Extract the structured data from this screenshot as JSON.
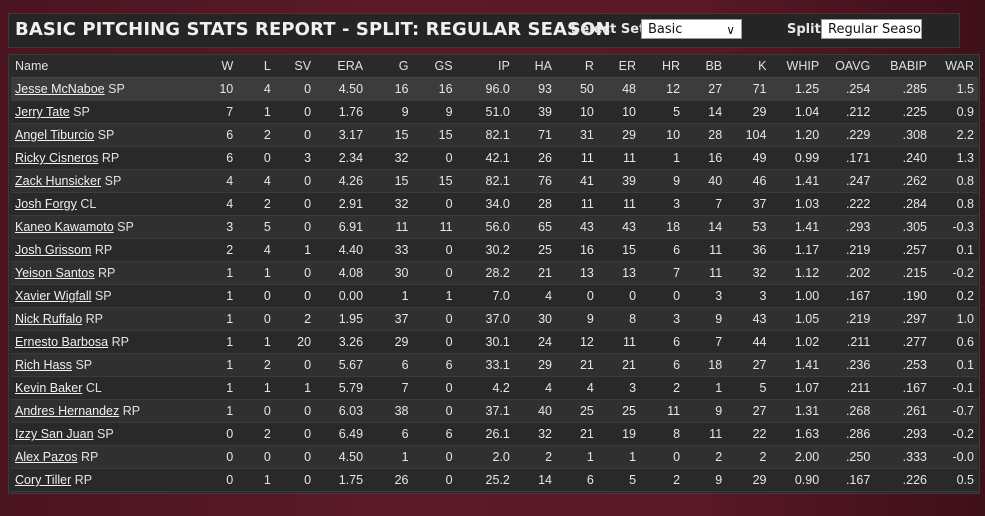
{
  "header": {
    "title": "BASIC PITCHING STATS REPORT - SPLIT: REGULAR SEASON",
    "select_set_label": "Select Set:",
    "select_set_value": "Basic",
    "split_label": "Split:",
    "split_value": "Regular Seaso"
  },
  "table": {
    "columns": [
      "Name",
      "W",
      "L",
      "SV",
      "ERA",
      "G",
      "GS",
      "IP",
      "HA",
      "R",
      "ER",
      "HR",
      "BB",
      "K",
      "WHIP",
      "OAVG",
      "BABIP",
      "WAR"
    ],
    "rows": [
      {
        "name": "Jesse McNaboe",
        "pos": "SP",
        "stats": [
          "10",
          "4",
          "0",
          "4.50",
          "16",
          "16",
          "96.0",
          "93",
          "50",
          "48",
          "12",
          "27",
          "71",
          "1.25",
          ".254",
          ".285",
          "1.5"
        ]
      },
      {
        "name": "Jerry Tate",
        "pos": "SP",
        "stats": [
          "7",
          "1",
          "0",
          "1.76",
          "9",
          "9",
          "51.0",
          "39",
          "10",
          "10",
          "5",
          "14",
          "29",
          "1.04",
          ".212",
          ".225",
          "0.9"
        ]
      },
      {
        "name": "Angel Tiburcio",
        "pos": "SP",
        "stats": [
          "6",
          "2",
          "0",
          "3.17",
          "15",
          "15",
          "82.1",
          "71",
          "31",
          "29",
          "10",
          "28",
          "104",
          "1.20",
          ".229",
          ".308",
          "2.2"
        ]
      },
      {
        "name": "Ricky Cisneros",
        "pos": "RP",
        "stats": [
          "6",
          "0",
          "3",
          "2.34",
          "32",
          "0",
          "42.1",
          "26",
          "11",
          "11",
          "1",
          "16",
          "49",
          "0.99",
          ".171",
          ".240",
          "1.3"
        ]
      },
      {
        "name": "Zack Hunsicker",
        "pos": "SP",
        "stats": [
          "4",
          "4",
          "0",
          "4.26",
          "15",
          "15",
          "82.1",
          "76",
          "41",
          "39",
          "9",
          "40",
          "46",
          "1.41",
          ".247",
          ".262",
          "0.8"
        ]
      },
      {
        "name": "Josh Forgy",
        "pos": "CL",
        "stats": [
          "4",
          "2",
          "0",
          "2.91",
          "32",
          "0",
          "34.0",
          "28",
          "11",
          "11",
          "3",
          "7",
          "37",
          "1.03",
          ".222",
          ".284",
          "0.8"
        ]
      },
      {
        "name": "Kaneo Kawamoto",
        "pos": "SP",
        "stats": [
          "3",
          "5",
          "0",
          "6.91",
          "11",
          "11",
          "56.0",
          "65",
          "43",
          "43",
          "18",
          "14",
          "53",
          "1.41",
          ".293",
          ".305",
          "-0.3"
        ]
      },
      {
        "name": "Josh Grissom",
        "pos": "RP",
        "stats": [
          "2",
          "4",
          "1",
          "4.40",
          "33",
          "0",
          "30.2",
          "25",
          "16",
          "15",
          "6",
          "11",
          "36",
          "1.17",
          ".219",
          ".257",
          "0.1"
        ]
      },
      {
        "name": "Yeison Santos",
        "pos": "RP",
        "stats": [
          "1",
          "1",
          "0",
          "4.08",
          "30",
          "0",
          "28.2",
          "21",
          "13",
          "13",
          "7",
          "11",
          "32",
          "1.12",
          ".202",
          ".215",
          "-0.2"
        ]
      },
      {
        "name": "Xavier Wigfall",
        "pos": "SP",
        "stats": [
          "1",
          "0",
          "0",
          "0.00",
          "1",
          "1",
          "7.0",
          "4",
          "0",
          "0",
          "0",
          "3",
          "3",
          "1.00",
          ".167",
          ".190",
          "0.2"
        ]
      },
      {
        "name": "Nick Ruffalo",
        "pos": "RP",
        "stats": [
          "1",
          "0",
          "2",
          "1.95",
          "37",
          "0",
          "37.0",
          "30",
          "9",
          "8",
          "3",
          "9",
          "43",
          "1.05",
          ".219",
          ".297",
          "1.0"
        ]
      },
      {
        "name": "Ernesto Barbosa",
        "pos": "RP",
        "stats": [
          "1",
          "1",
          "20",
          "3.26",
          "29",
          "0",
          "30.1",
          "24",
          "12",
          "11",
          "6",
          "7",
          "44",
          "1.02",
          ".211",
          ".277",
          "0.6"
        ]
      },
      {
        "name": "Rich Hass",
        "pos": "SP",
        "stats": [
          "1",
          "2",
          "0",
          "5.67",
          "6",
          "6",
          "33.1",
          "29",
          "21",
          "21",
          "6",
          "18",
          "27",
          "1.41",
          ".236",
          ".253",
          "0.1"
        ]
      },
      {
        "name": "Kevin Baker",
        "pos": "CL",
        "stats": [
          "1",
          "1",
          "1",
          "5.79",
          "7",
          "0",
          "4.2",
          "4",
          "4",
          "3",
          "2",
          "1",
          "5",
          "1.07",
          ".211",
          ".167",
          "-0.1"
        ]
      },
      {
        "name": "Andres Hernandez",
        "pos": "RP",
        "stats": [
          "1",
          "0",
          "0",
          "6.03",
          "38",
          "0",
          "37.1",
          "40",
          "25",
          "25",
          "11",
          "9",
          "27",
          "1.31",
          ".268",
          ".261",
          "-0.7"
        ]
      },
      {
        "name": "Izzy San Juan",
        "pos": "SP",
        "stats": [
          "0",
          "2",
          "0",
          "6.49",
          "6",
          "6",
          "26.1",
          "32",
          "21",
          "19",
          "8",
          "11",
          "22",
          "1.63",
          ".286",
          ".293",
          "-0.2"
        ]
      },
      {
        "name": "Alex Pazos",
        "pos": "RP",
        "stats": [
          "0",
          "0",
          "0",
          "4.50",
          "1",
          "0",
          "2.0",
          "2",
          "1",
          "1",
          "0",
          "2",
          "2",
          "2.00",
          ".250",
          ".333",
          "-0.0"
        ]
      },
      {
        "name": "Cory Tiller",
        "pos": "RP",
        "stats": [
          "0",
          "1",
          "0",
          "1.75",
          "26",
          "0",
          "25.2",
          "14",
          "6",
          "5",
          "2",
          "9",
          "29",
          "0.90",
          ".167",
          ".226",
          "0.5"
        ]
      }
    ]
  }
}
